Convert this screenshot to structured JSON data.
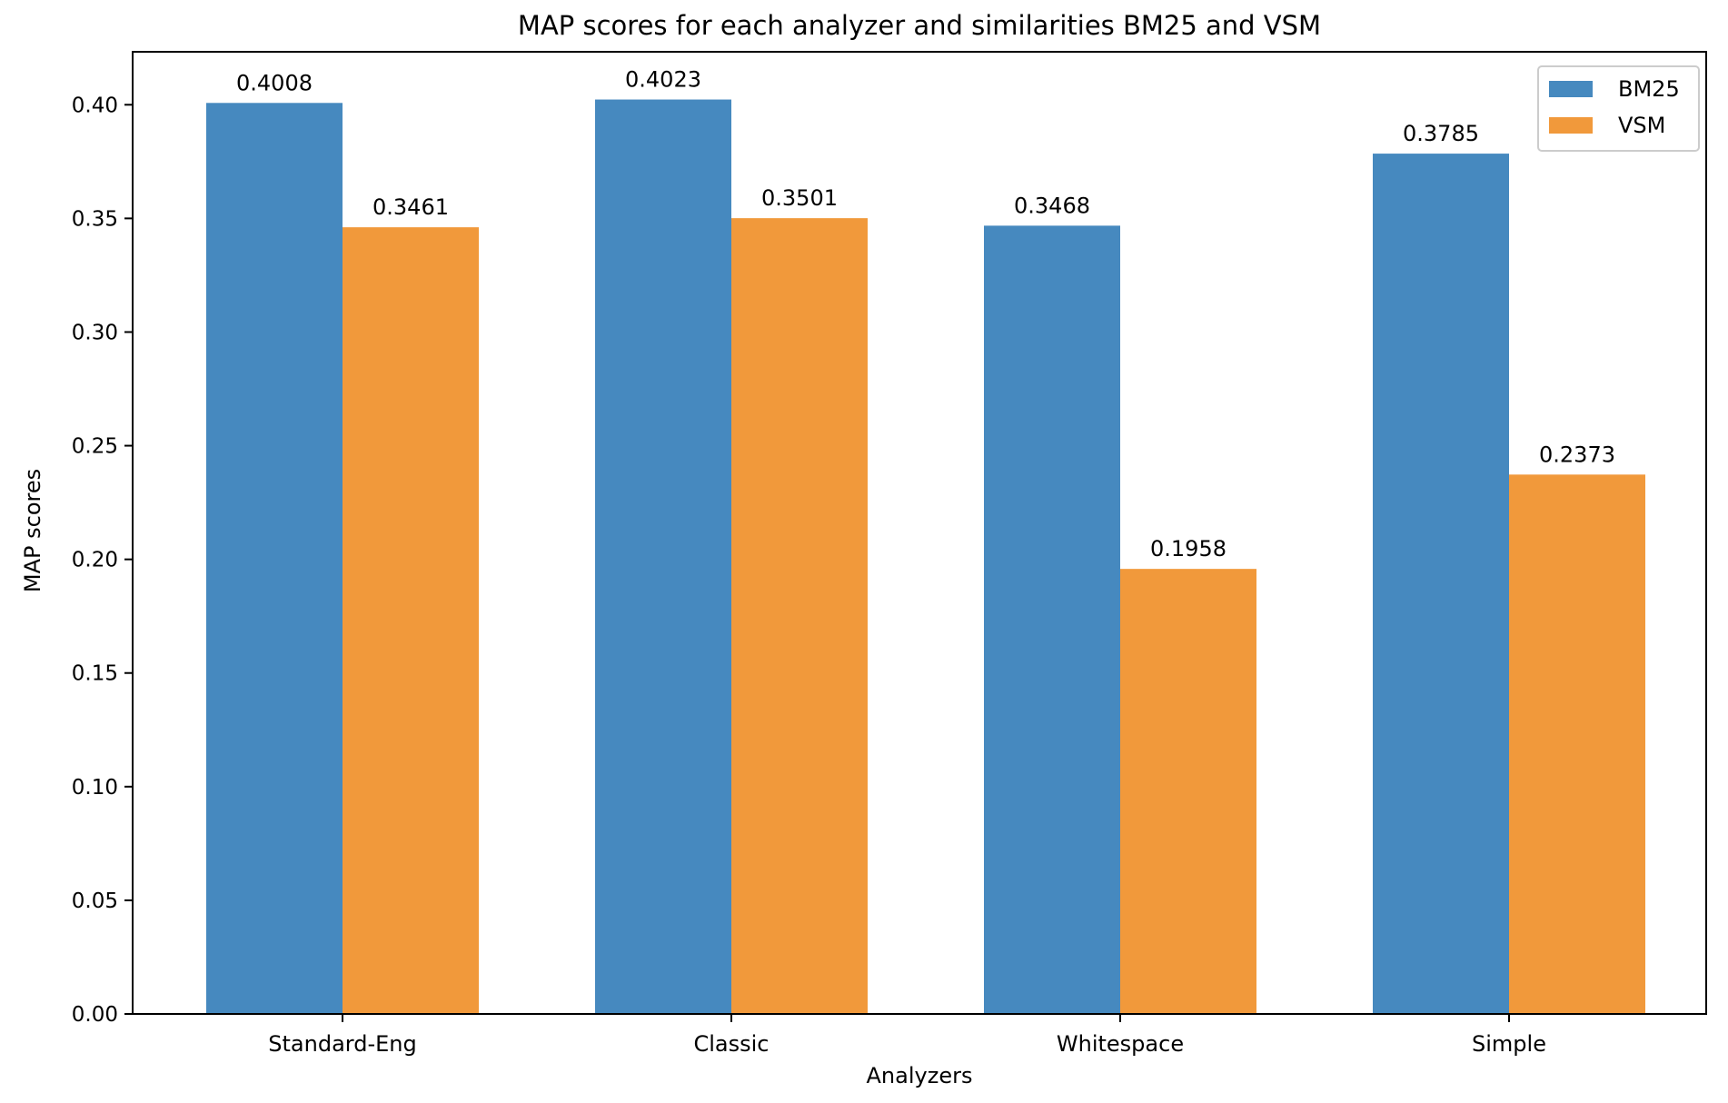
{
  "chart_data": {
    "type": "bar",
    "title": "MAP scores for each analyzer and similarities BM25 and VSM",
    "xlabel": "Analyzers",
    "ylabel": "MAP scores",
    "categories": [
      "Standard-Eng",
      "Classic",
      "Whitespace",
      "Simple"
    ],
    "series": [
      {
        "name": "BM25",
        "values": [
          0.4008,
          0.4023,
          0.3468,
          0.3785
        ],
        "labels": [
          "0.4008",
          "0.4023",
          "0.3468",
          "0.3785"
        ],
        "color": "#4689bf"
      },
      {
        "name": "VSM",
        "values": [
          0.3461,
          0.3501,
          0.1958,
          0.2373
        ],
        "labels": [
          "0.3461",
          "0.3501",
          "0.1958",
          "0.2373"
        ],
        "color": "#f1993b"
      }
    ],
    "ylim": [
      0,
      0.4233
    ],
    "yticks": [
      0,
      0.05,
      0.1,
      0.15,
      0.2,
      0.25,
      0.3,
      0.35,
      0.4
    ],
    "ytick_labels": [
      "0.00",
      "0.05",
      "0.10",
      "0.15",
      "0.20",
      "0.25",
      "0.30",
      "0.35",
      "0.40"
    ],
    "grid": false,
    "legend": "top-right"
  }
}
